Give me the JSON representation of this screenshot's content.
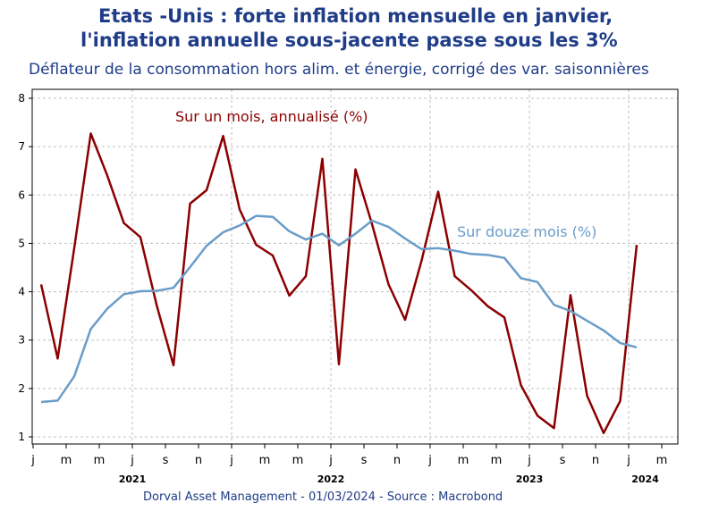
{
  "header": {
    "title_line1": "Etats -Unis : forte inflation mensuelle en janvier,",
    "title_line2": "l'inflation annuelle sous-jacente passe sous les 3%",
    "subtitle": "Déflateur de la consommation hors alim. et énergie, corrigé des var. saisonnières"
  },
  "footer": {
    "credit": "Dorval Asset Management      - 01/03/2024   -   Source : Macrobond"
  },
  "colors": {
    "monthly_series": "#8b0000",
    "annual_series": "#6a9cc9",
    "title": "#1f3c88",
    "grid": "#c0c0c0",
    "axis": "#000000"
  },
  "chart_data": {
    "type": "line",
    "title": "Etats -Unis : forte inflation mensuelle en janvier, l'inflation annuelle sous-jacente passe sous les 3%",
    "subtitle": "Déflateur de la consommation hors alim. et énergie, corrigé des var. saisonnières",
    "x_tick_labels": [
      "j",
      "m",
      "m",
      "j",
      "s",
      "n",
      "j",
      "m",
      "m",
      "j",
      "s",
      "n",
      "j",
      "m",
      "m",
      "j",
      "s",
      "n",
      "j",
      "m"
    ],
    "year_labels": [
      {
        "label": "2021",
        "month_index": 6
      },
      {
        "label": "2022",
        "month_index": 18
      },
      {
        "label": "2023",
        "month_index": 30
      },
      {
        "label": "2024",
        "month_index": 37
      }
    ],
    "x_start": "2021-01",
    "x_count": 40,
    "ylim": [
      1,
      8
    ],
    "yticks": [
      1,
      2,
      3,
      4,
      5,
      6,
      7,
      8
    ],
    "grid": true,
    "series": [
      {
        "name": "Sur un mois, annualisé (%)",
        "label_position": "top-left",
        "values": [
          4.15,
          2.62,
          4.9,
          7.27,
          6.4,
          5.42,
          5.13,
          3.7,
          2.48,
          5.82,
          6.1,
          7.22,
          5.7,
          4.97,
          4.75,
          3.92,
          4.32,
          6.75,
          2.5,
          6.53,
          5.4,
          4.15,
          3.42,
          4.65,
          6.07,
          4.32,
          4.03,
          3.7,
          3.47,
          2.07,
          1.44,
          1.18,
          3.93,
          1.85,
          1.08,
          1.74,
          4.97
        ]
      },
      {
        "name": "Sur douze mois (%)",
        "label_position": "right",
        "values": [
          1.72,
          1.75,
          2.25,
          3.23,
          3.65,
          3.95,
          4.01,
          4.02,
          4.08,
          4.51,
          4.95,
          5.23,
          5.37,
          5.57,
          5.55,
          5.25,
          5.08,
          5.2,
          4.96,
          5.2,
          5.47,
          5.34,
          5.1,
          4.88,
          4.9,
          4.85,
          4.78,
          4.76,
          4.7,
          4.28,
          4.2,
          3.73,
          3.6,
          3.4,
          3.2,
          2.94,
          2.85
        ]
      }
    ]
  }
}
